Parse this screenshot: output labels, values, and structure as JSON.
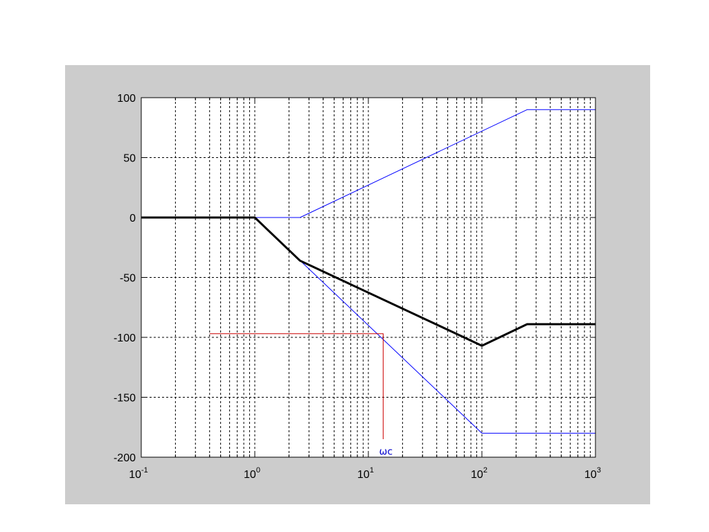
{
  "chart_data": {
    "type": "line",
    "title": "",
    "xlabel": "",
    "ylabel": "",
    "x_scale": "log",
    "xlim": [
      0.1,
      1000
    ],
    "ylim": [
      -200,
      100
    ],
    "grid": true,
    "y_ticks": [
      100,
      50,
      0,
      -50,
      -100,
      -150,
      -200
    ],
    "x_ticks": [
      {
        "value": 0.1,
        "base": "10",
        "exp": "-1"
      },
      {
        "value": 1,
        "base": "10",
        "exp": "0"
      },
      {
        "value": 10,
        "base": "10",
        "exp": "1"
      },
      {
        "value": 100,
        "base": "10",
        "exp": "2"
      },
      {
        "value": 1000,
        "base": "10",
        "exp": "3"
      }
    ],
    "series": [
      {
        "color": "#0000ff",
        "width": 1,
        "points": [
          [
            0.1,
            0
          ],
          [
            2.5,
            0
          ],
          [
            250,
            90
          ],
          [
            1000,
            90
          ]
        ]
      },
      {
        "color": "#0000ff",
        "width": 1,
        "points": [
          [
            0.1,
            0
          ],
          [
            1,
            0
          ],
          [
            100,
            -180
          ],
          [
            1000,
            -180
          ]
        ]
      },
      {
        "color": "#000000",
        "width": 3,
        "points": [
          [
            0.1,
            0
          ],
          [
            1,
            0
          ],
          [
            2.5,
            -36
          ],
          [
            100,
            -107
          ],
          [
            250,
            -89
          ],
          [
            1000,
            -89
          ]
        ]
      }
    ],
    "annotations": [
      {
        "color": "#cc0000",
        "points": [
          [
            0.4,
            -97
          ],
          [
            13.5,
            -97
          ],
          [
            13.5,
            -185
          ]
        ]
      }
    ],
    "annotation_label": {
      "text": "ωc",
      "x": 13.5,
      "y": -195,
      "color": "#0000cc"
    }
  }
}
